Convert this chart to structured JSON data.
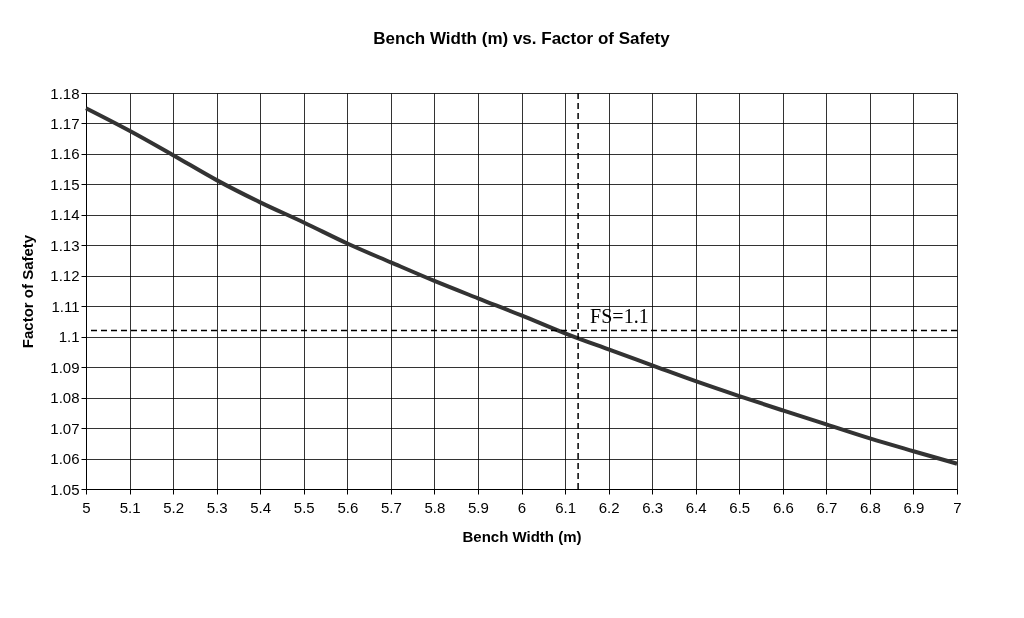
{
  "chart_data": {
    "type": "line",
    "title": "Bench Width (m) vs. Factor of Safety",
    "xlabel": "Bench Width (m)",
    "ylabel": "Factor of Safety",
    "x": [
      5.0,
      5.1,
      5.2,
      5.3,
      5.4,
      5.5,
      5.6,
      5.7,
      5.8,
      5.9,
      6.0,
      6.1,
      6.2,
      6.3,
      6.4,
      6.5,
      6.6,
      6.7,
      6.8,
      6.9,
      7.0
    ],
    "series": [
      {
        "color": "#333333",
        "values": [
          1.175,
          1.1676,
          1.1596,
          1.1514,
          1.1441,
          1.1375,
          1.1306,
          1.1244,
          1.1183,
          1.1126,
          1.107,
          1.1011,
          1.0958,
          1.0906,
          1.0854,
          1.0805,
          1.0758,
          1.0712,
          1.0666,
          1.0624,
          1.0583
        ]
      }
    ],
    "xlim": [
      5,
      7
    ],
    "xticks": [
      5,
      5.1,
      5.2,
      5.3,
      5.4,
      5.5,
      5.6,
      5.7,
      5.8,
      5.9,
      6,
      6.1,
      6.2,
      6.3,
      6.4,
      6.5,
      6.6,
      6.7,
      6.8,
      6.9,
      7
    ],
    "ylim": [
      1.05,
      1.18
    ],
    "yticks": [
      1.05,
      1.06,
      1.07,
      1.08,
      1.09,
      1.1,
      1.11,
      1.12,
      1.13,
      1.14,
      1.15,
      1.16,
      1.17,
      1.18
    ],
    "ref_lines": [
      {
        "axis": "y",
        "value": 1.102,
        "label": "FS=1.1",
        "color": "#000000",
        "line_style": "dashed"
      },
      {
        "axis": "x",
        "value": 6.13,
        "color": "#000000",
        "line_style": "dashed"
      }
    ],
    "grid": true,
    "marker": "none",
    "line_style": "solid"
  }
}
